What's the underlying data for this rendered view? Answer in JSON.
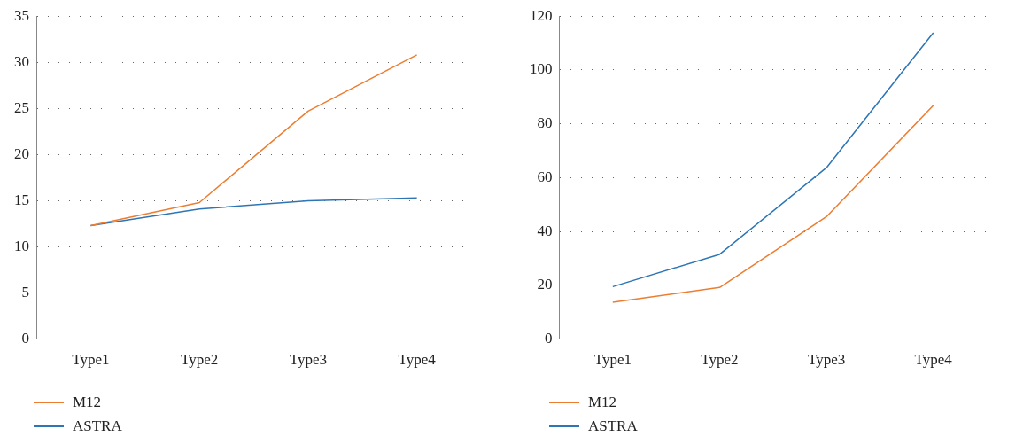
{
  "chart_data": [
    {
      "type": "line",
      "categories": [
        "Type1",
        "Type2",
        "Type3",
        "Type4"
      ],
      "series": [
        {
          "name": "M12",
          "color": "#ed7d31",
          "values": [
            12.3,
            14.8,
            24.7,
            30.8
          ]
        },
        {
          "name": "ASTRA",
          "color": "#2e75b6",
          "values": [
            12.3,
            14.1,
            15.0,
            15.3
          ]
        }
      ],
      "ylim": [
        0,
        35
      ],
      "yticks": [
        0,
        5,
        10,
        15,
        20,
        25,
        30,
        35
      ],
      "grid": "y",
      "legend": "bottom left",
      "marker": "none",
      "line_style": "solid"
    },
    {
      "type": "line",
      "categories": [
        "Type1",
        "Type2",
        "Type3",
        "Type4"
      ],
      "series": [
        {
          "name": "M12",
          "color": "#ed7d31",
          "values": [
            13.7,
            19.2,
            45.5,
            86.8
          ]
        },
        {
          "name": "ASTRA",
          "color": "#2e75b6",
          "values": [
            19.5,
            31.5,
            63.7,
            113.8
          ]
        }
      ],
      "ylim": [
        0,
        120
      ],
      "yticks": [
        0,
        20,
        40,
        60,
        80,
        100,
        120
      ],
      "grid": "y",
      "legend": "bottom left",
      "marker": "none",
      "line_style": "solid"
    }
  ]
}
